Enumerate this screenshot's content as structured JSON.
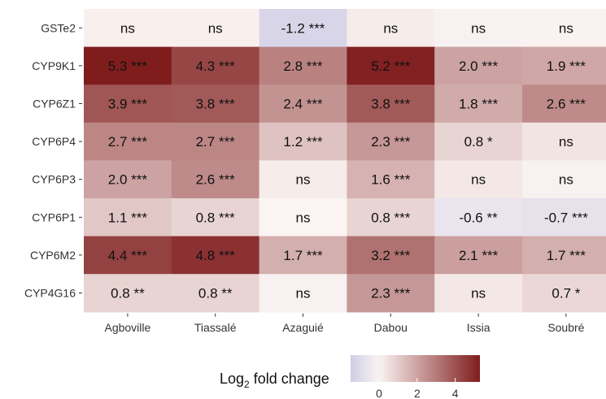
{
  "chart_data": {
    "type": "heatmap",
    "columns": [
      "Agboville",
      "Tiassalé",
      "Azaguié",
      "Dabou",
      "Issia",
      "Soubré"
    ],
    "rows": [
      "GSTe2",
      "CYP9K1",
      "CYP6Z1",
      "CYP6P4",
      "CYP6P3",
      "CYP6P1",
      "CYP6M2",
      "CYP4G16"
    ],
    "values": [
      [
        0.1,
        0.1,
        -1.2,
        0.2,
        -0.1,
        0.05
      ],
      [
        5.3,
        4.3,
        2.8,
        5.2,
        2.0,
        1.9
      ],
      [
        3.9,
        3.8,
        2.4,
        3.8,
        1.8,
        2.6
      ],
      [
        2.7,
        2.7,
        1.2,
        2.3,
        0.8,
        0.4
      ],
      [
        2.0,
        2.6,
        0.2,
        1.6,
        0.3,
        -0.1
      ],
      [
        1.1,
        0.8,
        0.0,
        0.8,
        -0.6,
        -0.7
      ],
      [
        4.4,
        4.8,
        1.7,
        3.2,
        2.1,
        1.7
      ],
      [
        0.8,
        0.8,
        -0.1,
        2.3,
        0.3,
        0.7
      ]
    ],
    "labels": [
      [
        "ns",
        "ns",
        "-1.2 ***",
        "ns",
        "ns",
        "ns"
      ],
      [
        "5.3 ***",
        "4.3 ***",
        "2.8 ***",
        "5.2 ***",
        "2.0 ***",
        "1.9 ***"
      ],
      [
        "3.9 ***",
        "3.8 ***",
        "2.4 ***",
        "3.8 ***",
        "1.8 ***",
        "2.6 ***"
      ],
      [
        "2.7 ***",
        "2.7 ***",
        "1.2 ***",
        "2.3 ***",
        "0.8 *",
        "ns"
      ],
      [
        "2.0 ***",
        "2.6 ***",
        "ns",
        "1.6 ***",
        "ns",
        "ns"
      ],
      [
        "1.1 ***",
        "0.8 ***",
        "ns",
        "0.8 ***",
        "-0.6 **",
        "-0.7 ***"
      ],
      [
        "4.4 ***",
        "4.8 ***",
        "1.7 ***",
        "3.2 ***",
        "2.1 ***",
        "1.7 ***"
      ],
      [
        "0.8 **",
        "0.8 **",
        "ns",
        "2.3 ***",
        "ns",
        "0.7 *"
      ]
    ],
    "legend": {
      "title_main": "Log",
      "title_sub": "2",
      "title_rest": " fold change",
      "ticks": [
        0,
        2,
        4
      ],
      "range": [
        -1.5,
        5.3
      ],
      "placement": "bottom"
    },
    "colors": {
      "low": "#cfcde6",
      "mid": "#fbf4f2",
      "high": "#7f1d1d"
    }
  }
}
